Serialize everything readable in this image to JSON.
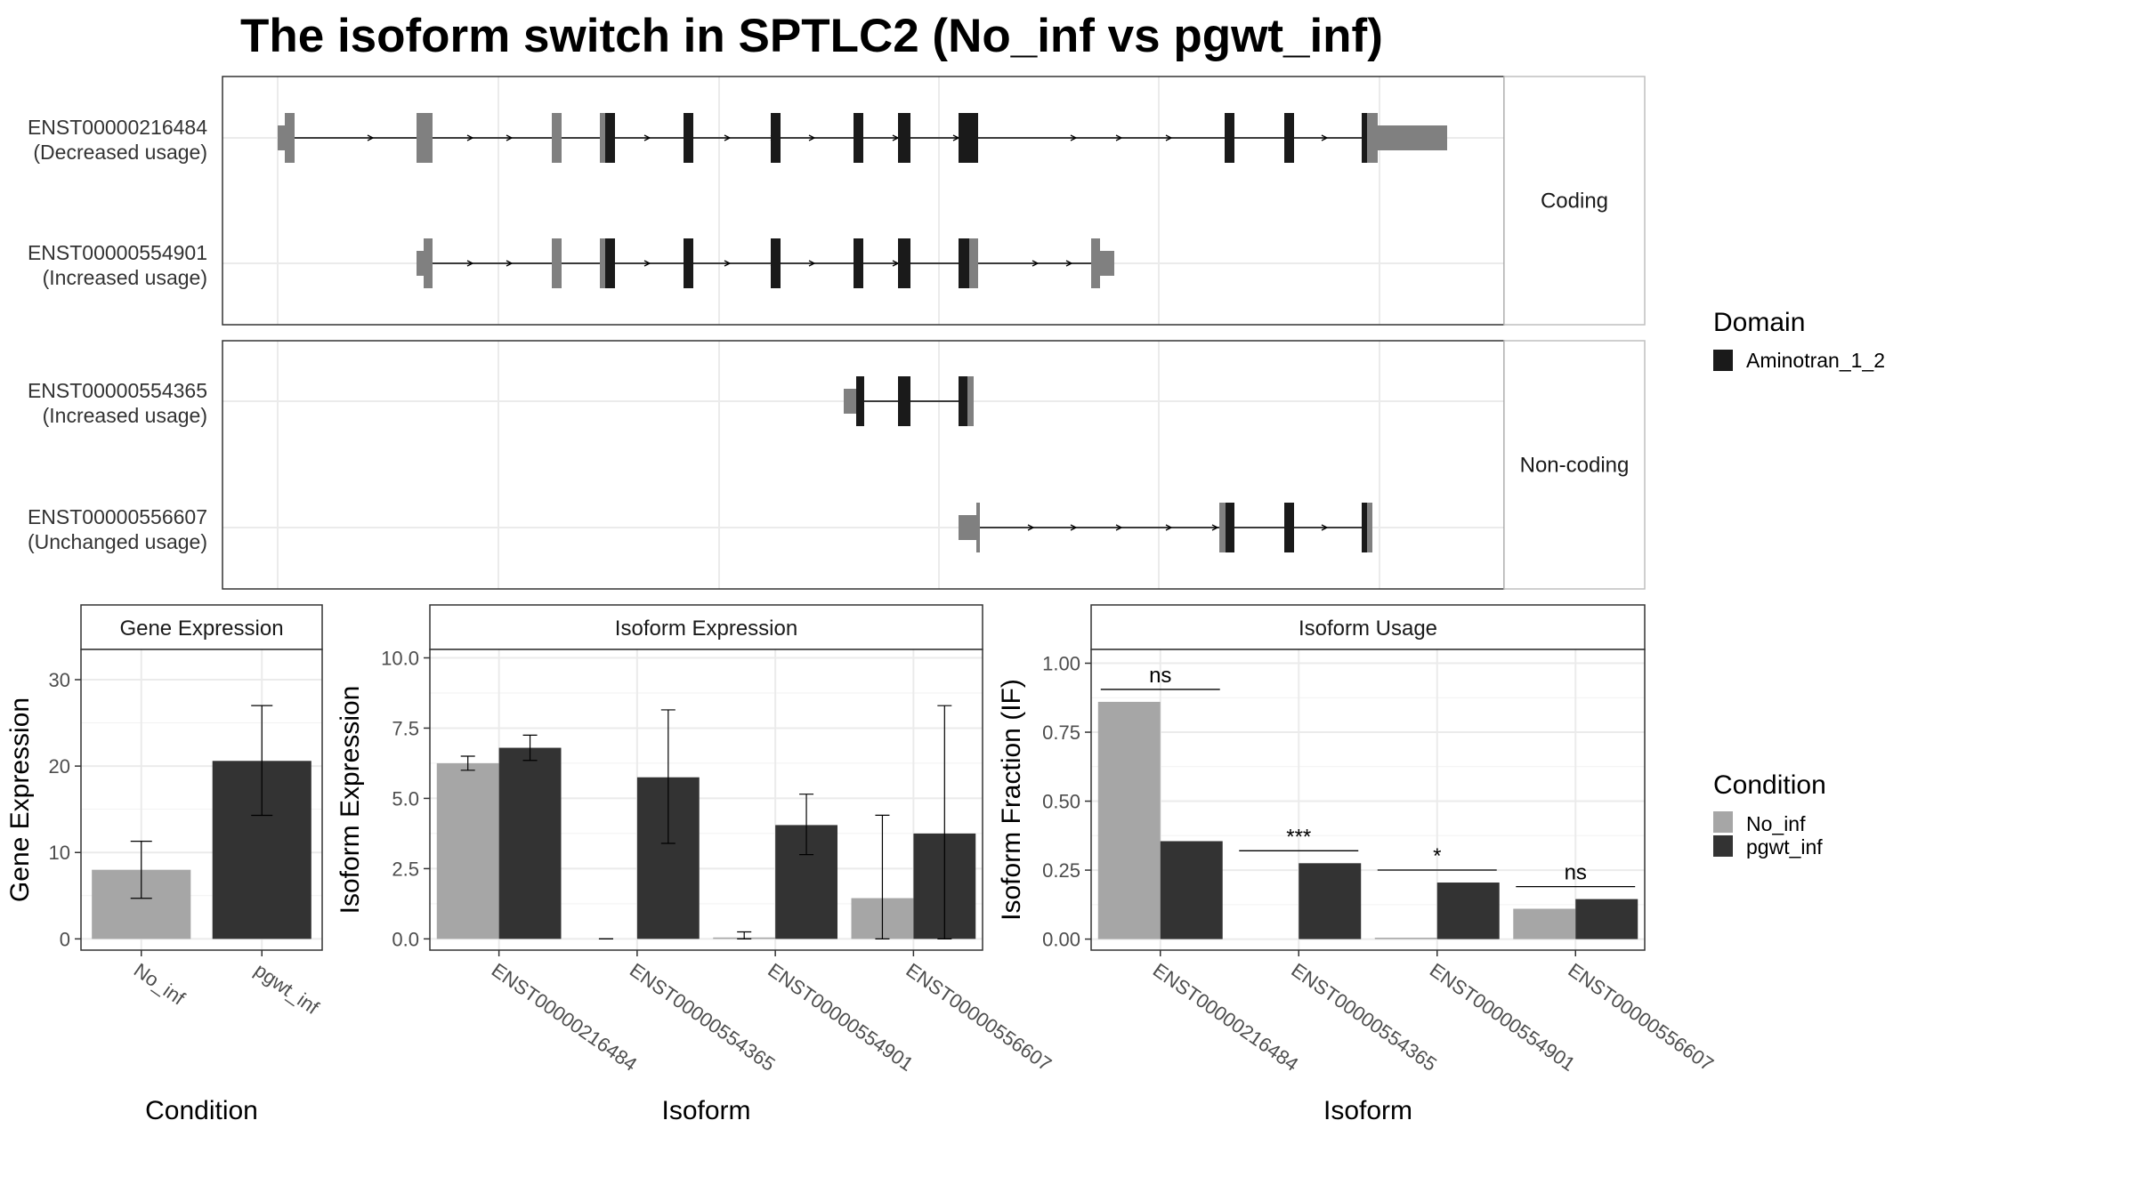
{
  "title": "The isoform switch in SPTLC2 (No_inf vs pgwt_inf)",
  "structure": {
    "facets": [
      "Coding",
      "Non-coding"
    ],
    "transcripts": [
      {
        "id": "ENST00000216484",
        "usage": "(Decreased usage)",
        "facet": "Coding"
      },
      {
        "id": "ENST00000554901",
        "usage": "(Increased usage)",
        "facet": "Coding"
      },
      {
        "id": "ENST00000554365",
        "usage": "(Increased usage)",
        "facet": "Non-coding"
      },
      {
        "id": "ENST00000556607",
        "usage": "(Unchanged usage)",
        "facet": "Non-coding"
      }
    ],
    "legend": {
      "title": "Domain",
      "items": [
        {
          "label": "Aminotran_1_2",
          "color": "#1a1a1a"
        }
      ]
    },
    "colors": {
      "utr": "#808080",
      "domain": "#1a1a1a",
      "intron": "#000000"
    }
  },
  "chart_data": [
    {
      "type": "bar",
      "title": "Gene Expression",
      "xlabel": "Condition",
      "ylabel": "Gene Expression",
      "categories": [
        "No_inf",
        "pgwt_inf"
      ],
      "values": [
        8.0,
        20.6
      ],
      "error_low": [
        4.7,
        14.3
      ],
      "error_high": [
        11.3,
        27.0
      ],
      "ylim": [
        -1.3,
        33.5
      ],
      "yticks": [
        0,
        10,
        20,
        30
      ],
      "ytick_labels": [
        "0",
        "10",
        "20",
        "30"
      ]
    },
    {
      "type": "bar",
      "title": "Isoform Expression",
      "xlabel": "Isoform",
      "ylabel": "Isoform Expression",
      "categories": [
        "ENST00000216484",
        "ENST00000554365",
        "ENST00000554901",
        "ENST00000556607"
      ],
      "series": [
        {
          "name": "No_inf",
          "values": [
            6.25,
            0.0,
            0.05,
            1.45
          ],
          "error_low": [
            6.0,
            0.0,
            0.0,
            0.0
          ],
          "error_high": [
            6.5,
            0.0,
            0.25,
            4.4
          ]
        },
        {
          "name": "pgwt_inf",
          "values": [
            6.8,
            5.75,
            4.05,
            3.75
          ],
          "error_low": [
            6.35,
            3.4,
            3.0,
            0.0
          ],
          "error_high": [
            7.25,
            8.15,
            5.15,
            8.3
          ]
        }
      ],
      "ylim": [
        -0.4,
        10.3
      ],
      "yticks": [
        0,
        2.5,
        5,
        7.5,
        10
      ],
      "ytick_labels": [
        "0.0",
        "2.5",
        "5.0",
        "7.5",
        "10.0"
      ]
    },
    {
      "type": "bar",
      "title": "Isoform Usage",
      "xlabel": "Isoform",
      "ylabel": "Isoform Fraction (IF)",
      "categories": [
        "ENST00000216484",
        "ENST00000554365",
        "ENST00000554901",
        "ENST00000556607"
      ],
      "series": [
        {
          "name": "No_inf",
          "values": [
            0.86,
            0.0,
            0.005,
            0.11
          ]
        },
        {
          "name": "pgwt_inf",
          "values": [
            0.355,
            0.275,
            0.205,
            0.145
          ]
        }
      ],
      "significance": [
        "ns",
        "***",
        "*",
        "ns"
      ],
      "ylim": [
        -0.04,
        1.05
      ],
      "yticks": [
        0,
        0.25,
        0.5,
        0.75,
        1.0
      ],
      "ytick_labels": [
        "0.00",
        "0.25",
        "0.50",
        "0.75",
        "1.00"
      ]
    }
  ],
  "condition_legend": {
    "title": "Condition",
    "items": [
      {
        "label": "No_inf",
        "color": "#a6a6a6"
      },
      {
        "label": "pgwt_inf",
        "color": "#333333"
      }
    ]
  }
}
